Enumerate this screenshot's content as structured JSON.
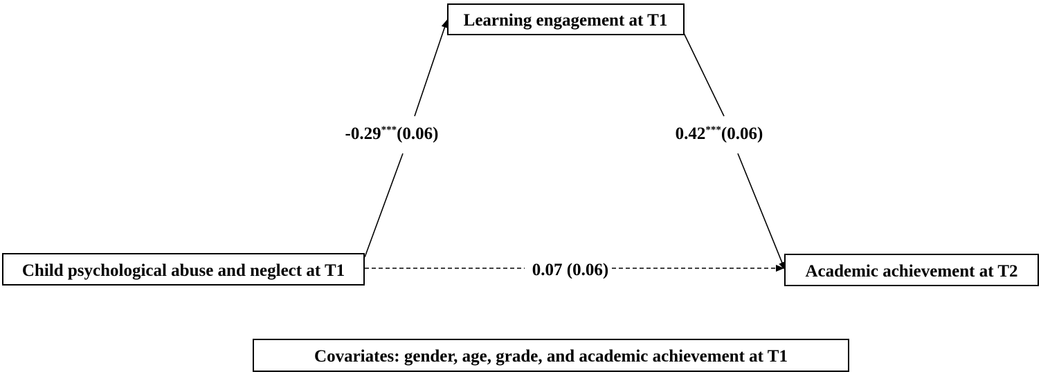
{
  "nodes": {
    "predictor": {
      "label": "Child psychological abuse and neglect at T1"
    },
    "mediator": {
      "label": "Learning engagement at T1"
    },
    "outcome": {
      "label": "Academic achievement at T2"
    },
    "covariates": {
      "label": "Covariates: gender, age, grade, and academic achievement at T1"
    }
  },
  "paths": {
    "a": {
      "coef": "-0.29",
      "sig": "***",
      "se": "(0.06)"
    },
    "b": {
      "coef": "0.42",
      "sig": "***",
      "se": "(0.06)"
    },
    "c_prime": {
      "coef": "0.07",
      "se": "(0.06)",
      "style": "dashed"
    }
  }
}
